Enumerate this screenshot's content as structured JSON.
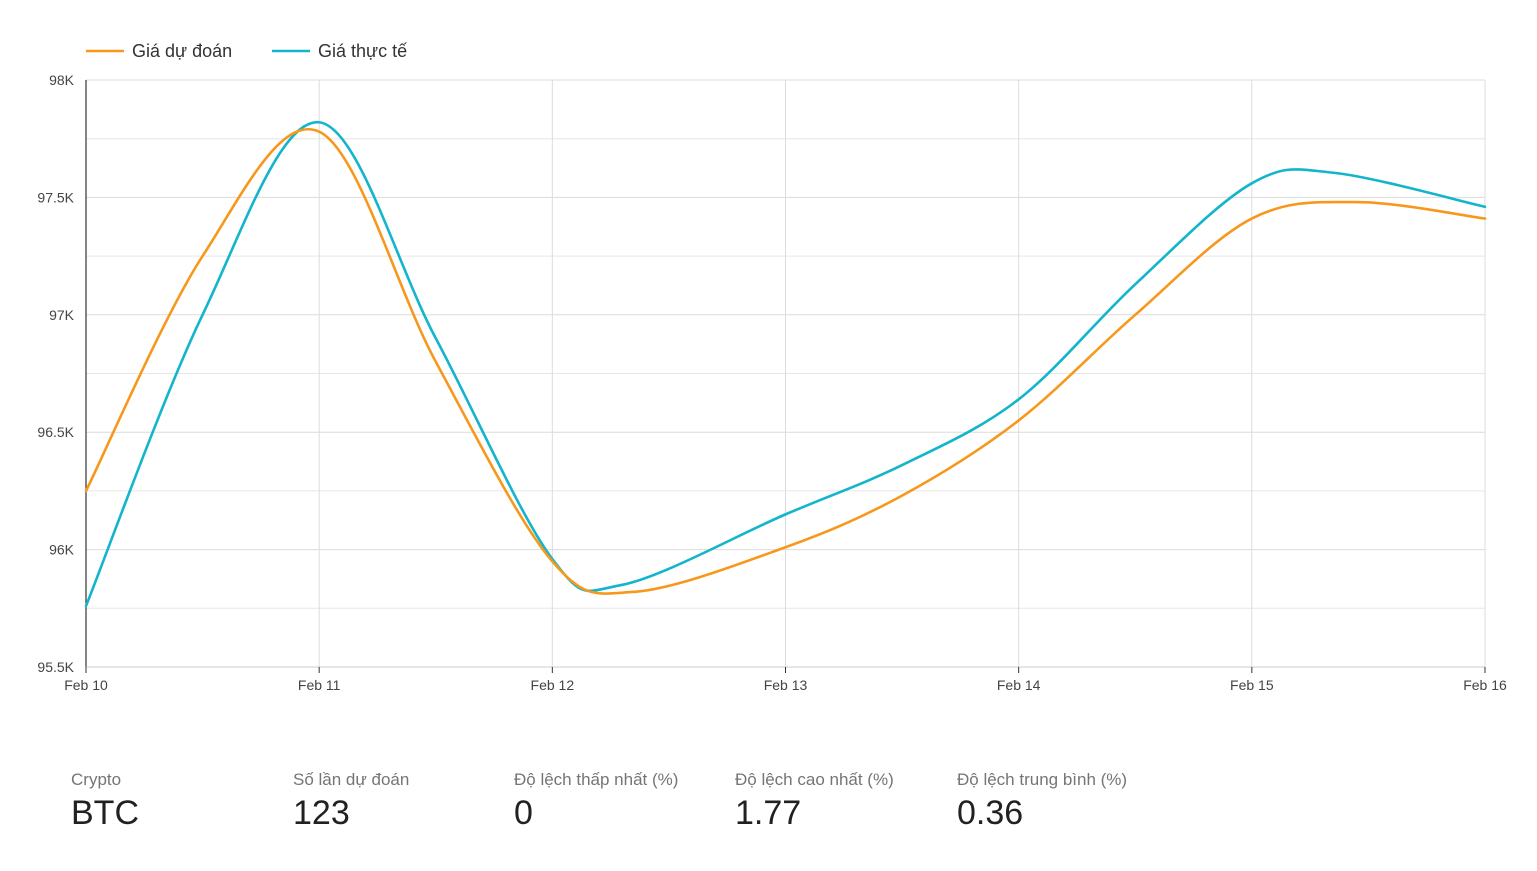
{
  "chart_data": {
    "type": "line",
    "x": [
      "Feb 10",
      "Feb 11",
      "Feb 12",
      "Feb 13",
      "Feb 14",
      "Feb 15",
      "Feb 16"
    ],
    "xlabel": "",
    "ylabel": "",
    "ylim": [
      95500,
      98000
    ],
    "y_ticks": [
      {
        "value": 95500,
        "label": "95.5K"
      },
      {
        "value": 96000,
        "label": "96K"
      },
      {
        "value": 96500,
        "label": "96.5K"
      },
      {
        "value": 97000,
        "label": "97K"
      },
      {
        "value": 97500,
        "label": "97.5K"
      },
      {
        "value": 98000,
        "label": "98K"
      }
    ],
    "grid": true,
    "legend_position": "top-left",
    "series": [
      {
        "name": "Giá dự đoán",
        "color": "#F7981D",
        "points": [
          {
            "x": 0,
            "y": 96250
          },
          {
            "x": 0.5,
            "y": 97250
          },
          {
            "x": 1,
            "y": 97780
          },
          {
            "x": 1.5,
            "y": 96800
          },
          {
            "x": 2,
            "y": 95950
          },
          {
            "x": 2.35,
            "y": 95820
          },
          {
            "x": 3,
            "y": 96010
          },
          {
            "x": 3.5,
            "y": 96230
          },
          {
            "x": 4,
            "y": 96550
          },
          {
            "x": 4.5,
            "y": 97000
          },
          {
            "x": 5,
            "y": 97410
          },
          {
            "x": 5.45,
            "y": 97480
          },
          {
            "x": 6,
            "y": 97410
          }
        ]
      },
      {
        "name": "Giá thực tế",
        "color": "#12B5CB",
        "points": [
          {
            "x": 0,
            "y": 95760
          },
          {
            "x": 0.5,
            "y": 97000
          },
          {
            "x": 1,
            "y": 97820
          },
          {
            "x": 1.5,
            "y": 96900
          },
          {
            "x": 2,
            "y": 95960
          },
          {
            "x": 2.3,
            "y": 95850
          },
          {
            "x": 3,
            "y": 96150
          },
          {
            "x": 3.5,
            "y": 96360
          },
          {
            "x": 4,
            "y": 96640
          },
          {
            "x": 4.5,
            "y": 97130
          },
          {
            "x": 5,
            "y": 97560
          },
          {
            "x": 5.35,
            "y": 97605
          },
          {
            "x": 6,
            "y": 97460
          }
        ]
      }
    ]
  },
  "stats": [
    {
      "label": "Crypto",
      "value": "BTC"
    },
    {
      "label": "Số lần dự đoán",
      "value": "123"
    },
    {
      "label": "Độ lệch thấp nhất (%)",
      "value": "0"
    },
    {
      "label": "Độ lệch cao nhất (%)",
      "value": "1.77"
    },
    {
      "label": "Độ lệch trung bình (%)",
      "value": "0.36"
    }
  ]
}
